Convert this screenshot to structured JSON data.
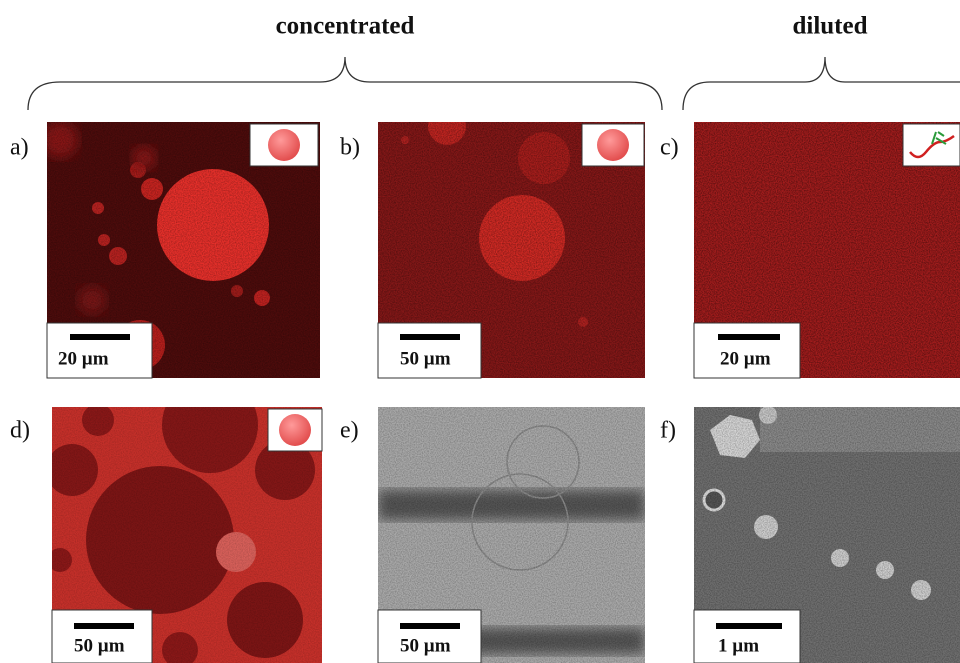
{
  "header": {
    "left": "concentrated",
    "right": "diluted"
  },
  "panels": [
    {
      "label": "a)",
      "scale": "20 µm"
    },
    {
      "label": "b)",
      "scale": "50 µm"
    },
    {
      "label": "c)",
      "scale": "20 µm"
    },
    {
      "label": "d)",
      "scale": "50 µm"
    },
    {
      "label": "e)",
      "scale": "50 µm"
    },
    {
      "label": "f)",
      "scale": "1 µm"
    }
  ]
}
